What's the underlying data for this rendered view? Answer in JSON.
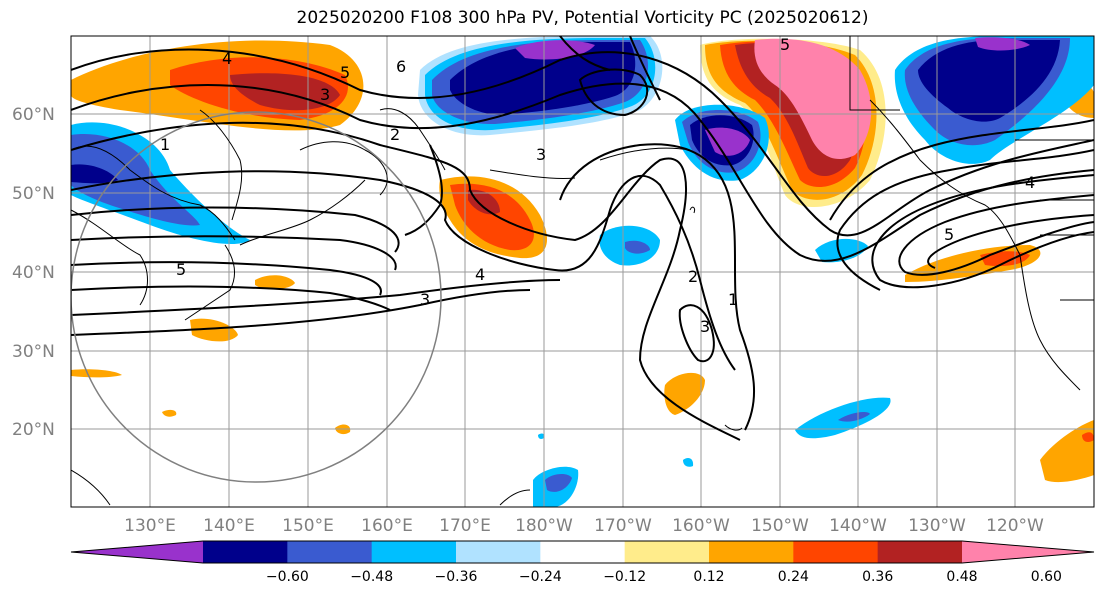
{
  "title": "2025020200 F108 300 hPa PV, Potential Vorticity PC (2025020612)",
  "lat_labels": [
    "60°N",
    "50°N",
    "40°N",
    "30°N",
    "20°N"
  ],
  "lon_labels": [
    "130°E",
    "140°E",
    "150°E",
    "160°E",
    "170°E",
    "180°W",
    "170°W",
    "160°W",
    "150°W",
    "140°W",
    "130°W",
    "120°W"
  ],
  "colorbar": {
    "levels": [
      "−0.60",
      "−0.48",
      "−0.36",
      "−0.24",
      "−0.12",
      "0.12",
      "0.24",
      "0.36",
      "0.48",
      "0.60"
    ],
    "colors": [
      "#9932CC",
      "#00008B",
      "#3A5BD0",
      "#00BFFF",
      "#B0E2FF",
      "#FFFFFF",
      "#FFEC8B",
      "#FFA500",
      "#FF4500",
      "#B22222",
      "#FF82AB"
    ]
  },
  "contour_labels": [
    "4",
    "5",
    "3",
    "6",
    "2",
    "1",
    "3",
    "5",
    "4",
    "3",
    "1",
    "2",
    "3",
    "4",
    "5",
    "5"
  ]
}
